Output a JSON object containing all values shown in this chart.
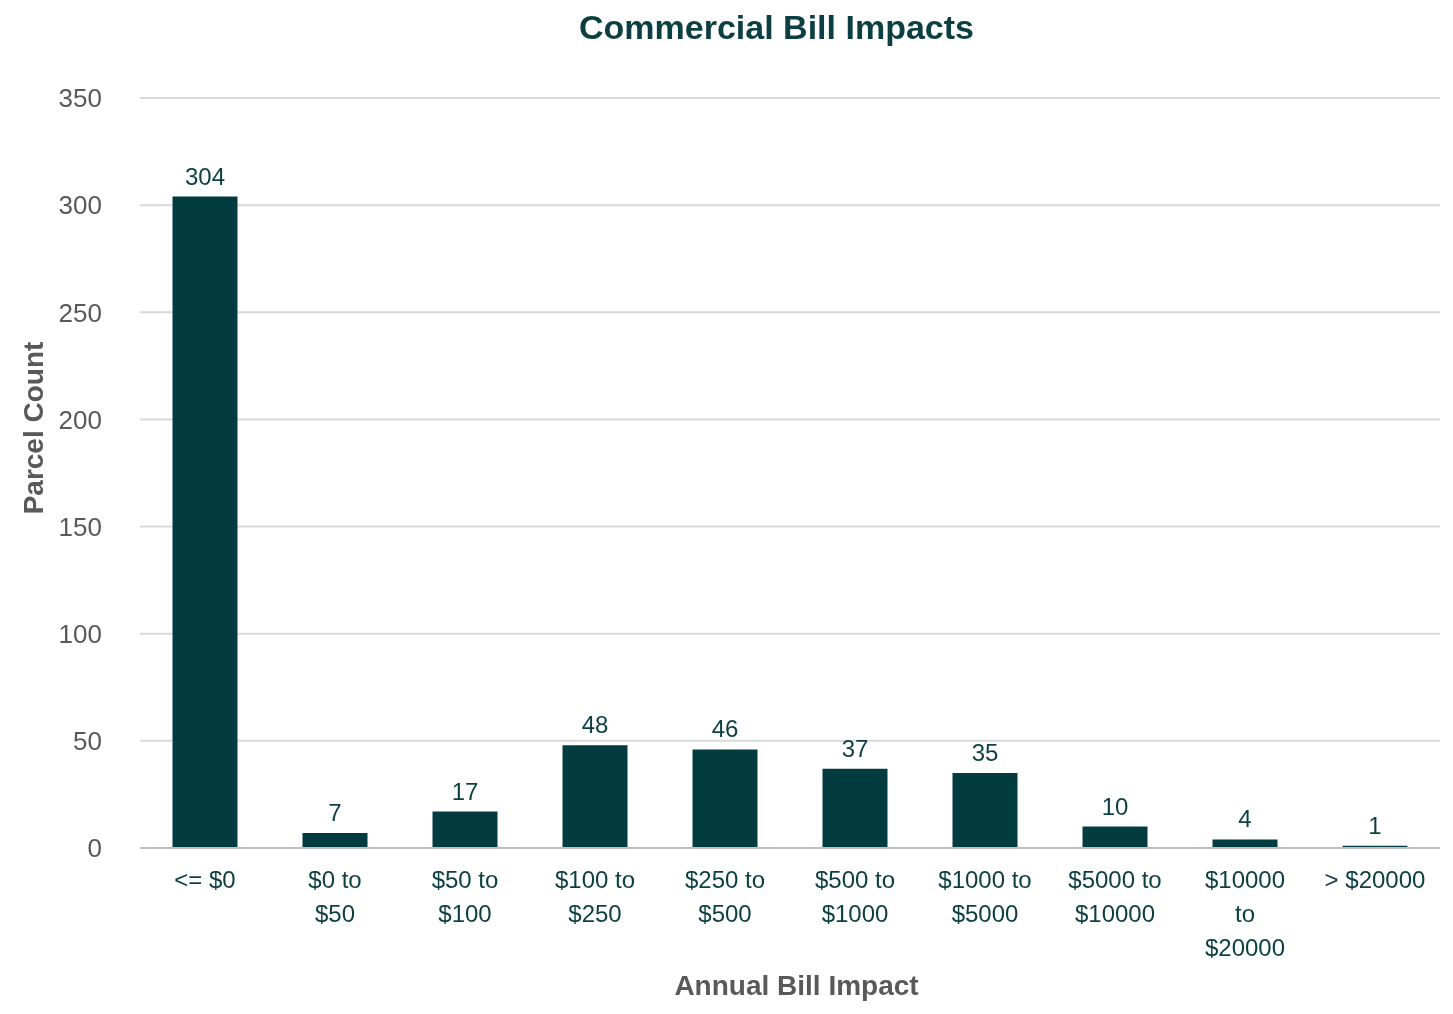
{
  "chart_data": {
    "type": "bar",
    "title": "Commercial Bill Impacts",
    "xlabel": "Annual Bill Impact",
    "ylabel": "Parcel Count",
    "categories": [
      "<= $0",
      "$0 to $50",
      "$50 to $100",
      "$100 to $250",
      "$250 to $500",
      "$500 to $1000",
      "$1000 to $5000",
      "$5000 to $10000",
      "$10000 to $20000",
      "> $20000"
    ],
    "values": [
      304,
      7,
      17,
      48,
      46,
      37,
      35,
      10,
      4,
      1
    ],
    "color": "#033c40",
    "ylim": [
      0,
      350
    ],
    "yticks": [
      0,
      50,
      100,
      150,
      200,
      250,
      300,
      350
    ],
    "grid": "y",
    "data_labels": true
  }
}
